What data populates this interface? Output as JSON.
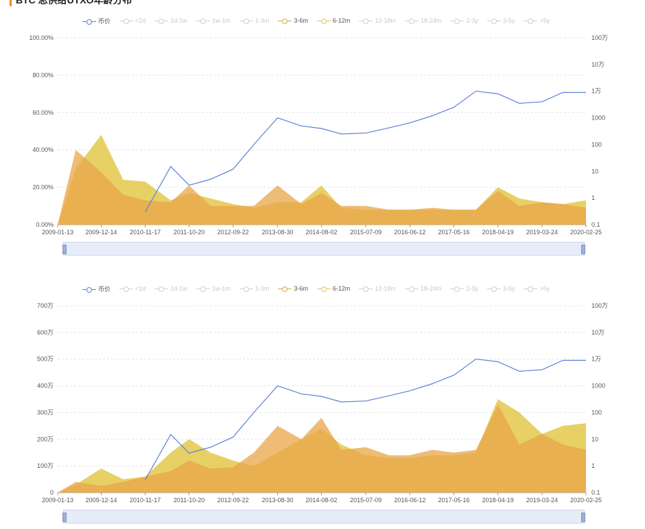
{
  "page": {
    "title": "BTC 总供给UTXO年龄分布"
  },
  "legend": [
    {
      "label": "币价",
      "color": "#5b7fd6",
      "active": true
    },
    {
      "label": "<1d",
      "color": "#cfcfcf",
      "active": false
    },
    {
      "label": "1d-1w",
      "color": "#cfcfcf",
      "active": false
    },
    {
      "label": "1w-1m",
      "color": "#cfcfcf",
      "active": false
    },
    {
      "label": "1-3m",
      "color": "#cfcfcf",
      "active": false
    },
    {
      "label": "3-6m",
      "color": "#d6a83c",
      "active": true
    },
    {
      "label": "6-12m",
      "color": "#e3c84a",
      "active": true
    },
    {
      "label": "12-18m",
      "color": "#cfcfcf",
      "active": false
    },
    {
      "label": "18-24m",
      "color": "#cfcfcf",
      "active": false
    },
    {
      "label": "2-3y",
      "color": "#cfcfcf",
      "active": false
    },
    {
      "label": "3-5y",
      "color": "#cfcfcf",
      "active": false
    },
    {
      "label": ">5y",
      "color": "#cfcfcf",
      "active": false
    }
  ],
  "colors": {
    "price": "#5b7fd6",
    "m3_6": "#e8a54a",
    "m6_12": "#e3c84a",
    "grid": "#e4e4e4"
  },
  "chart_data": [
    {
      "type": "area",
      "x": [
        "2009-01-13",
        "2009-06-01",
        "2009-12-14",
        "2010-06-01",
        "2010-11-17",
        "2011-06-01",
        "2011-10-20",
        "2012-04-01",
        "2012-09-22",
        "2013-03-01",
        "2013-08-30",
        "2014-03-01",
        "2014-08-02",
        "2015-01-01",
        "2015-07-09",
        "2016-01-01",
        "2016-06-12",
        "2016-12-01",
        "2017-05-16",
        "2017-11-01",
        "2018-04-19",
        "2018-10-01",
        "2019-03-24",
        "2019-09-01",
        "2020-02-25"
      ],
      "x_ticks": [
        "2009-01-13",
        "2009-12-14",
        "2010-11-17",
        "2011-10-20",
        "2012-09-22",
        "2013-08-30",
        "2014-08-02",
        "2015-07-09",
        "2016-06-12",
        "2017-05-16",
        "2018-04-19",
        "2019-03-24",
        "2020-02-25"
      ],
      "y_ticks": [
        "0.00%",
        "20.00%",
        "40.00%",
        "60.00%",
        "80.00%",
        "100.00%"
      ],
      "y2_ticks": [
        "0.1",
        "1",
        "10",
        "100",
        "1000",
        "1万",
        "10万",
        "100万"
      ],
      "ylim": [
        0,
        100
      ],
      "y2_scale": "log",
      "y2lim": [
        0.1,
        1000000
      ],
      "series": [
        {
          "name": "3-6m",
          "values": [
            0,
            40,
            28,
            16,
            13,
            12,
            21,
            10,
            10,
            10,
            21,
            11,
            17,
            10,
            10,
            8,
            8,
            9,
            8,
            8,
            18,
            10,
            12,
            11,
            9
          ]
        },
        {
          "name": "6-12m",
          "values": [
            0,
            30,
            48,
            24,
            23,
            13,
            17,
            14,
            11,
            9,
            12,
            12,
            21,
            9,
            8,
            8,
            8,
            8,
            8,
            8,
            20,
            14,
            12,
            11,
            13
          ]
        },
        {
          "name": "币价",
          "axis": "y2",
          "values": [
            null,
            null,
            null,
            null,
            0.3,
            15,
            3,
            5,
            12,
            100,
            1000,
            500,
            400,
            250,
            270,
            420,
            650,
            1200,
            2500,
            10000,
            8000,
            3500,
            4000,
            9000,
            9000
          ]
        }
      ]
    },
    {
      "type": "area",
      "x": [
        "2009-01-13",
        "2009-06-01",
        "2009-12-14",
        "2010-06-01",
        "2010-11-17",
        "2011-06-01",
        "2011-10-20",
        "2012-04-01",
        "2012-09-22",
        "2013-03-01",
        "2013-08-30",
        "2014-03-01",
        "2014-08-02",
        "2015-01-01",
        "2015-07-09",
        "2016-01-01",
        "2016-06-12",
        "2016-12-01",
        "2017-05-16",
        "2017-11-01",
        "2018-04-19",
        "2018-10-01",
        "2019-03-24",
        "2019-09-01",
        "2020-02-25"
      ],
      "x_ticks": [
        "2009-01-13",
        "2009-12-14",
        "2010-11-17",
        "2011-10-20",
        "2012-09-22",
        "2013-08-30",
        "2014-08-02",
        "2015-07-09",
        "2016-06-12",
        "2017-05-16",
        "2018-04-19",
        "2019-03-24",
        "2020-02-25"
      ],
      "y_ticks": [
        "0",
        "100万",
        "200万",
        "300万",
        "400万",
        "500万",
        "600万",
        "700万"
      ],
      "y2_ticks": [
        "0.1",
        "1",
        "10",
        "100",
        "1000",
        "1万",
        "10万",
        "100万"
      ],
      "ylim": [
        0,
        700
      ],
      "y2_scale": "log",
      "y2lim": [
        0.1,
        1000000
      ],
      "series": [
        {
          "name": "3-6m",
          "values": [
            0,
            40,
            25,
            40,
            60,
            80,
            120,
            90,
            95,
            150,
            250,
            200,
            280,
            160,
            170,
            140,
            140,
            160,
            150,
            160,
            330,
            180,
            220,
            180,
            160
          ]
        },
        {
          "name": "6-12m",
          "values": [
            0,
            30,
            90,
            50,
            60,
            150,
            200,
            150,
            120,
            100,
            150,
            200,
            240,
            180,
            140,
            130,
            130,
            140,
            140,
            150,
            350,
            300,
            220,
            250,
            260
          ]
        },
        {
          "name": "币价",
          "axis": "y2",
          "values": [
            null,
            null,
            null,
            null,
            0.3,
            15,
            3,
            5,
            12,
            100,
            1000,
            500,
            400,
            250,
            270,
            420,
            650,
            1200,
            2500,
            10000,
            8000,
            3500,
            4000,
            9000,
            9000
          ]
        }
      ]
    }
  ]
}
